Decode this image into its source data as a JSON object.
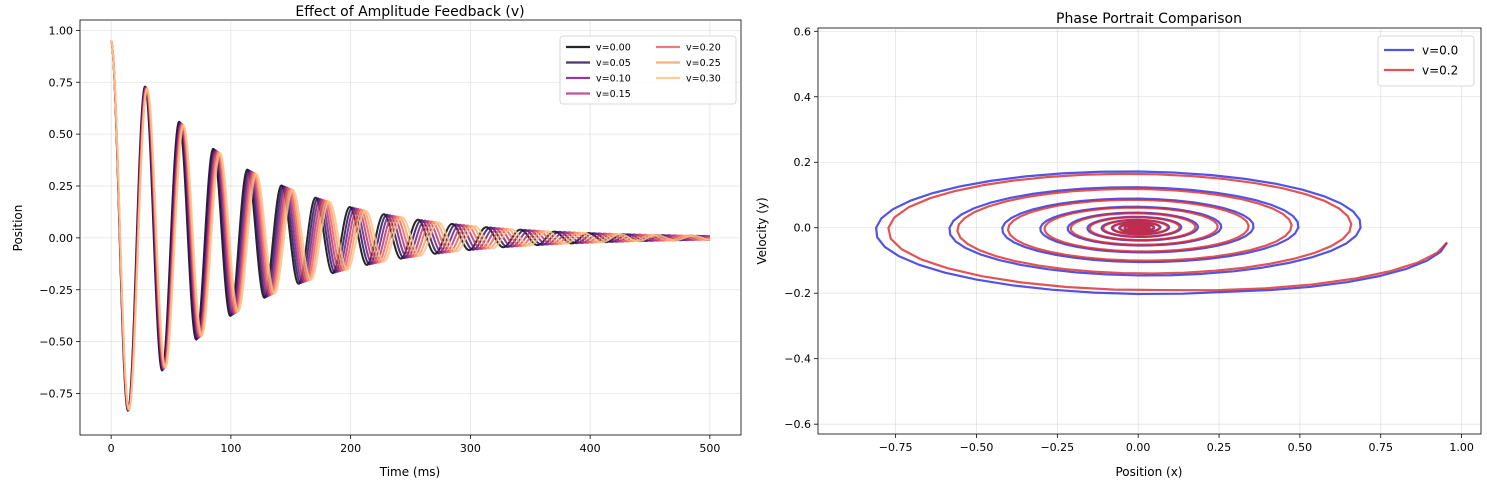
{
  "chart_data": [
    {
      "type": "line",
      "title": "Effect of Amplitude Feedback (v)",
      "xlabel": "Time (ms)",
      "ylabel": "Position",
      "xlim": [
        -26,
        526
      ],
      "ylim": [
        -0.95,
        1.05
      ],
      "xticks": [
        0,
        100,
        200,
        300,
        400,
        500
      ],
      "xtick_labels": [
        "0",
        "100",
        "200",
        "300",
        "400",
        "500"
      ],
      "yticks": [
        -0.75,
        -0.5,
        -0.25,
        0.0,
        0.25,
        0.5,
        0.75,
        1.0
      ],
      "ytick_labels": [
        "−0.75",
        "−0.50",
        "−0.25",
        "0.00",
        "0.25",
        "0.50",
        "0.75",
        "1.00"
      ],
      "grid": true,
      "legend": {
        "position": "upper-right",
        "columns": 2
      },
      "model": {
        "x0": 0.95,
        "decay_per_ms": 0.0093,
        "base_period_ms": 28.5,
        "period_growth_per_v": 0.22,
        "t_max": 500
      },
      "series": [
        {
          "name": "v=0.00",
          "v": 0.0,
          "color": "#000004"
        },
        {
          "name": "v=0.05",
          "v": 0.05,
          "color": "#2c115f"
        },
        {
          "name": "v=0.10",
          "v": 0.1,
          "color": "#721f81"
        },
        {
          "name": "v=0.15",
          "v": 0.15,
          "color": "#b73779"
        },
        {
          "name": "v=0.20",
          "v": 0.2,
          "color": "#f1605d"
        },
        {
          "name": "v=0.25",
          "v": 0.25,
          "color": "#fd9f6c"
        },
        {
          "name": "v=0.30",
          "v": 0.3,
          "color": "#fec287"
        }
      ]
    },
    {
      "type": "line",
      "title": "Phase Portrait Comparison",
      "xlabel": "Position (x)",
      "ylabel": "Velocity (y)",
      "xlim": [
        -0.99,
        1.06
      ],
      "ylim": [
        -0.63,
        0.61
      ],
      "xticks": [
        -0.75,
        -0.5,
        -0.25,
        0.0,
        0.25,
        0.5,
        0.75,
        1.0
      ],
      "xtick_labels": [
        "−0.75",
        "−0.50",
        "−0.25",
        "0.00",
        "0.25",
        "0.50",
        "0.75",
        "1.00"
      ],
      "yticks": [
        -0.6,
        -0.4,
        -0.2,
        0.0,
        0.2,
        0.4,
        0.6
      ],
      "ytick_labels": [
        "−0.6",
        "−0.4",
        "−0.2",
        "0.0",
        "0.2",
        "0.4",
        "0.6"
      ],
      "grid": true,
      "legend": {
        "position": "upper-right",
        "columns": 1
      },
      "model": {
        "x0": 0.955,
        "y0": -0.045,
        "velocity_scale": 0.23,
        "decay_per_turn": 0.72,
        "turns": 26
      },
      "series": [
        {
          "name": "v=0.0",
          "color": "#2222dd",
          "phase_offset": 0.0,
          "amp_scale": 1.0
        },
        {
          "name": "v=0.2",
          "color": "#dd2222",
          "phase_offset": 0.55,
          "amp_scale": 0.93
        }
      ]
    }
  ]
}
